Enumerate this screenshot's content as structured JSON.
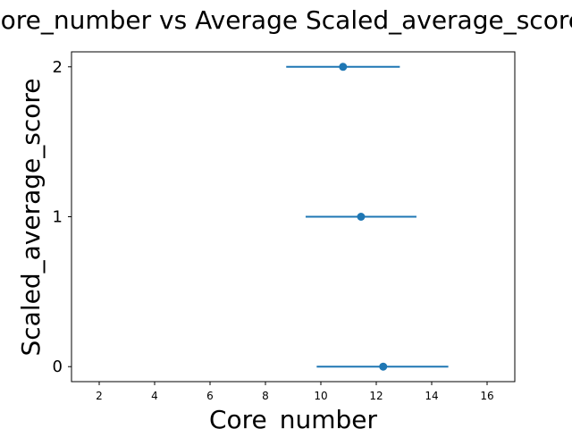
{
  "chart_data": {
    "type": "scatter",
    "title": "Core_number vs Average Scaled_average_score",
    "xlabel": "Core_number",
    "ylabel": "Scaled_average_score",
    "xlim": [
      1,
      17
    ],
    "ylim": [
      -0.1,
      2.1
    ],
    "xticks": [
      2,
      4,
      6,
      8,
      10,
      12,
      14,
      16
    ],
    "yticks": [
      0,
      1,
      2
    ],
    "grid": false,
    "color": "#1f77b4",
    "points": [
      {
        "y": 2,
        "x": 10.8,
        "xerr_low": 8.75,
        "xerr_high": 12.85
      },
      {
        "y": 1,
        "x": 11.45,
        "xerr_low": 9.45,
        "xerr_high": 13.45
      },
      {
        "y": 0,
        "x": 12.25,
        "xerr_low": 9.85,
        "xerr_high": 14.6
      }
    ]
  }
}
